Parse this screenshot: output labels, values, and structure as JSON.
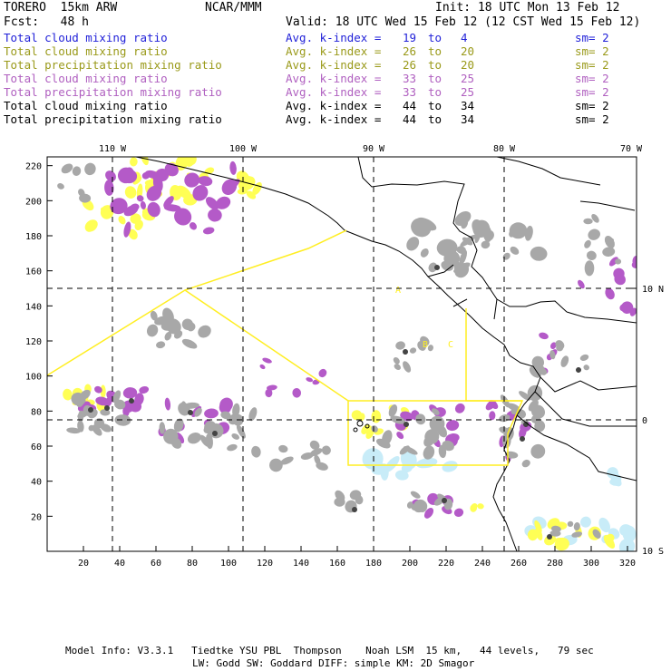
{
  "header": {
    "model": "TORERO  15km ARW",
    "org": "NCAR/MMM",
    "init": "Init: 18 UTC Mon 13 Feb 12",
    "fcst": "Fcst:   48 h",
    "valid": "Valid: 18 UTC Wed 15 Feb 12 (12 CST Wed 15 Feb 12)"
  },
  "legend": [
    {
      "field": "Total cloud mixing ratio",
      "idx": "Avg. k-index =",
      "a": "19",
      "to": "to",
      "b": "4",
      "sm": "sm= 2",
      "color": "#1f1fd8"
    },
    {
      "field": "Total cloud mixing ratio",
      "idx": "Avg. k-index =",
      "a": "26",
      "to": "to",
      "b": "20",
      "sm": "sm= 2",
      "color": "#9a9a1a"
    },
    {
      "field": "Total precipitation mixing ratio",
      "idx": "Avg. k-index =",
      "a": "26",
      "to": "to",
      "b": "20",
      "sm": "sm= 2",
      "color": "#9a9a1a"
    },
    {
      "field": "Total cloud mixing ratio",
      "idx": "Avg. k-index =",
      "a": "33",
      "to": "to",
      "b": "25",
      "sm": "sm= 2",
      "color": "#b060c0"
    },
    {
      "field": "Total precipitation mixing ratio",
      "idx": "Avg. k-index =",
      "a": "33",
      "to": "to",
      "b": "25",
      "sm": "sm= 2",
      "color": "#b060c0"
    },
    {
      "field": "Total cloud mixing ratio",
      "idx": "Avg. k-index =",
      "a": "44",
      "to": "to",
      "b": "34",
      "sm": "sm= 2",
      "color": "#000000"
    },
    {
      "field": "Total precipitation mixing ratio",
      "idx": "Avg. k-index =",
      "a": "44",
      "to": "to",
      "b": "34",
      "sm": "sm= 2",
      "color": "#000000"
    }
  ],
  "map": {
    "lon_labels": [
      "110 W",
      "100 W",
      "90 W",
      "80 W",
      "70 W"
    ],
    "lat_labels": [
      "10 N",
      "0",
      "10 S"
    ],
    "grid_x_ticks": [
      "20",
      "40",
      "60",
      "80",
      "100",
      "120",
      "140",
      "160",
      "180",
      "200",
      "220",
      "240",
      "260",
      "280",
      "300",
      "320"
    ],
    "grid_y_ticks": [
      "220",
      "200",
      "180",
      "160",
      "140",
      "120",
      "100",
      "80",
      "60",
      "40",
      "20"
    ],
    "box_labels": [
      "A",
      "B",
      "C"
    ],
    "colors": {
      "cloud_yellow": "#ffff55",
      "cloud_magenta": "#b45ac8",
      "cloud_gray": "#a8a8a8",
      "cloud_dark": "#444444",
      "ice_blue": "#c8ecf8",
      "box_yellow": "#ffee22"
    }
  },
  "footer": {
    "line1": "Model Info: V3.3.1   Tiedtke YSU PBL  Thompson    Noah LSM  15 km,   44 levels,   79 sec",
    "line2": "LW: Godd SW: Goddard DIFF: simple KM: 2D Smagor"
  }
}
